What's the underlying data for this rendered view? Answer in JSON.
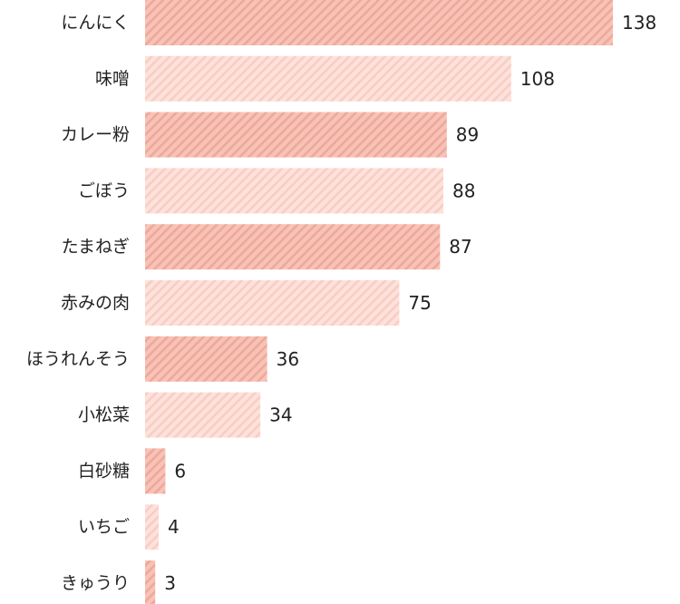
{
  "chart_data": {
    "type": "bar",
    "orientation": "horizontal",
    "title": "",
    "xlabel": "",
    "ylabel": "",
    "grid": false,
    "legend": "none",
    "xlim": [
      0,
      138
    ],
    "categories": [
      "にんにく",
      "味噌",
      "カレー粉",
      "ごぼう",
      "たまねぎ",
      "赤みの肉",
      "ほうれんそう",
      "小松菜",
      "白砂糖",
      "いちご",
      "きゅうり"
    ],
    "values": [
      138,
      108,
      89,
      88,
      87,
      75,
      36,
      34,
      6,
      4,
      3
    ]
  },
  "colors": {
    "bar_dark_fill": "#f7c3b8",
    "bar_dark_stripe": "#efa898",
    "bar_light_fill": "#fde2dc",
    "bar_light_stripe": "#f8cdc3",
    "text": "#222222"
  }
}
